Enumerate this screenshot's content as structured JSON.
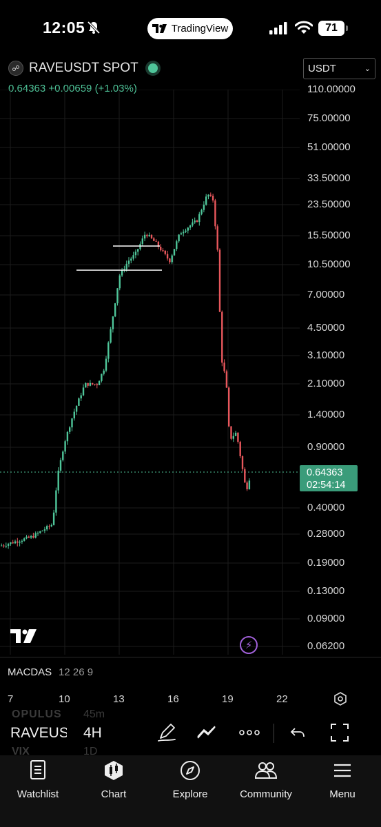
{
  "status": {
    "time": "12:05",
    "center_app": "TradingView",
    "battery": "71"
  },
  "header": {
    "symbol": "RAVEUSDT SPOT",
    "price": "0.64363",
    "change": "+0.00659",
    "change_pct": "(+1.03%)",
    "currency": "USDT"
  },
  "chart_data": {
    "type": "candlestick",
    "y_scale": "log",
    "price_axis_labels": [
      "110.00000",
      "75.00000",
      "51.00000",
      "33.50000",
      "23.50000",
      "15.50000",
      "10.50000",
      "7.00000",
      "4.50000",
      "3.10000",
      "2.10000",
      "1.40000",
      "0.90000",
      "0.40000",
      "0.28000",
      "0.19000",
      "0.13000",
      "0.09000",
      "0.06200"
    ],
    "time_axis_labels": [
      "7",
      "10",
      "13",
      "16",
      "19",
      "22"
    ],
    "last_price": "0.64363",
    "countdown": "02:54:14",
    "indicator": {
      "name": "MACDAS",
      "params": "12 26 9"
    },
    "colors": {
      "up": "#4fc69a",
      "down": "#e8575c",
      "grid": "#1c1c1c"
    }
  },
  "toolbar": {
    "symbol": "RAVEUSDT",
    "interval": "4H",
    "ghost": [
      {
        "symbol": "OPULUS",
        "interval": "45m"
      },
      {
        "symbol": "VIX",
        "interval": "1D"
      }
    ]
  },
  "nav": [
    {
      "label": "Watchlist",
      "icon": "watchlist-icon"
    },
    {
      "label": "Chart",
      "icon": "chart-icon"
    },
    {
      "label": "Explore",
      "icon": "compass-icon"
    },
    {
      "label": "Community",
      "icon": "community-icon"
    },
    {
      "label": "Menu",
      "icon": "menu-icon"
    }
  ]
}
